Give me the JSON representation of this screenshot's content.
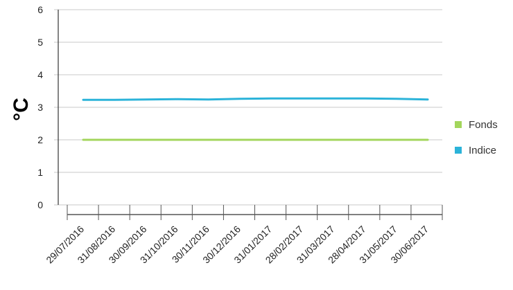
{
  "chart_data": {
    "type": "line",
    "title": "",
    "xlabel": "",
    "ylabel": "°C",
    "ylim": [
      0,
      6
    ],
    "y_ticks": [
      "0",
      "1",
      "2",
      "3",
      "4",
      "5",
      "6"
    ],
    "grid": "horizontal",
    "legend_position": "right",
    "categories": [
      "29/07/2016",
      "31/08/2016",
      "30/09/2016",
      "31/10/2016",
      "30/11/2016",
      "30/12/2016",
      "31/01/2017",
      "28/02/2017",
      "31/03/2017",
      "28/04/2017",
      "31/05/2017",
      "30/06/2017"
    ],
    "series": [
      {
        "name": "Fonds",
        "color": "#a3d65c",
        "values": [
          2.0,
          2.0,
          2.0,
          2.0,
          2.0,
          2.0,
          2.0,
          2.0,
          2.0,
          2.0,
          2.0,
          2.0
        ]
      },
      {
        "name": "Indice",
        "color": "#2bb3d9",
        "values": [
          3.23,
          3.23,
          3.24,
          3.25,
          3.24,
          3.26,
          3.27,
          3.27,
          3.27,
          3.27,
          3.26,
          3.24
        ]
      }
    ]
  }
}
